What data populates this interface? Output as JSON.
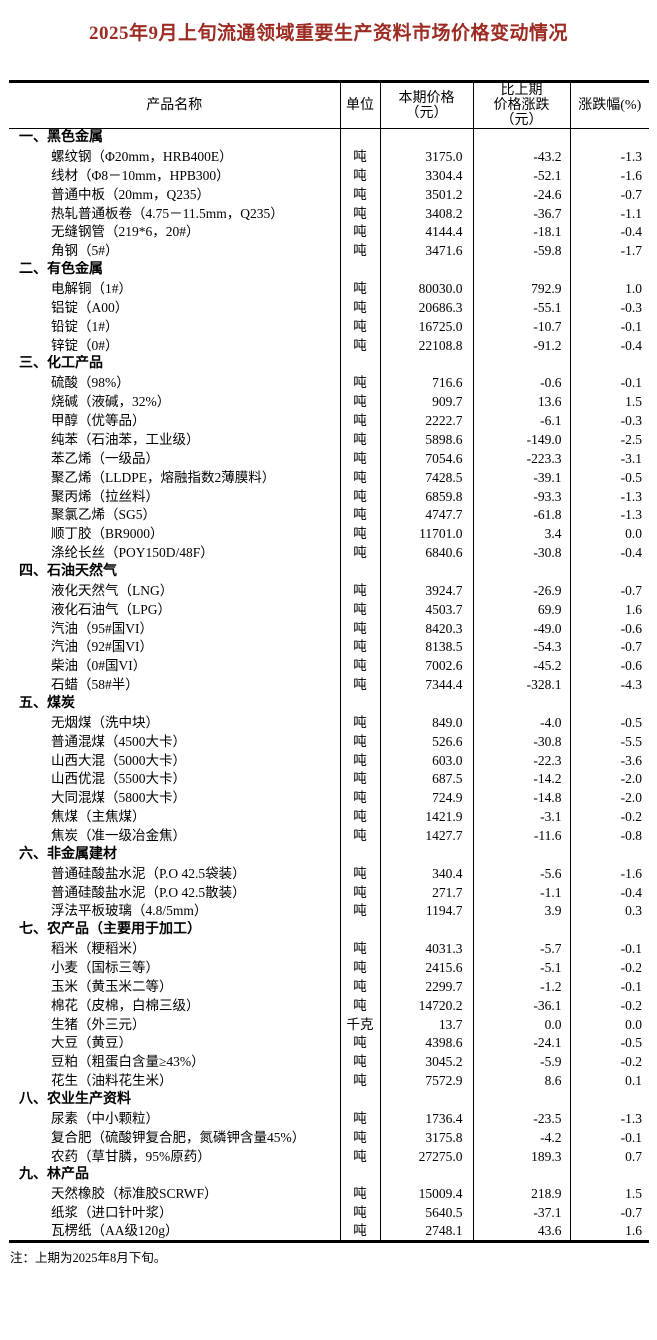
{
  "title": "2025年9月上旬流通领域重要生产资料市场价格变动情况",
  "note": "注：上期为2025年8月下旬。",
  "colors": {
    "title_red": "#9c2b22",
    "text": "#000000",
    "border": "#000000"
  },
  "table": {
    "headers": {
      "product": "产品名称",
      "unit": "单位",
      "price": "本期价格\n（元）",
      "change": "比上期\n价格涨跌\n（元）",
      "pct": "涨跌幅(%)"
    },
    "sections": [
      {
        "name": "一、黑色金属",
        "rows": [
          {
            "product": "螺纹钢（Φ20mm，HRB400E）",
            "unit": "吨",
            "price": "3175.0",
            "change": "-43.2",
            "pct": "-1.3"
          },
          {
            "product": "线材（Φ8－10mm，HPB300）",
            "unit": "吨",
            "price": "3304.4",
            "change": "-52.1",
            "pct": "-1.6"
          },
          {
            "product": "普通中板（20mm，Q235）",
            "unit": "吨",
            "price": "3501.2",
            "change": "-24.6",
            "pct": "-0.7"
          },
          {
            "product": "热轧普通板卷（4.75－11.5mm，Q235）",
            "unit": "吨",
            "price": "3408.2",
            "change": "-36.7",
            "pct": "-1.1"
          },
          {
            "product": "无缝钢管（219*6，20#）",
            "unit": "吨",
            "price": "4144.4",
            "change": "-18.1",
            "pct": "-0.4"
          },
          {
            "product": "角钢（5#）",
            "unit": "吨",
            "price": "3471.6",
            "change": "-59.8",
            "pct": "-1.7"
          }
        ]
      },
      {
        "name": "二、有色金属",
        "rows": [
          {
            "product": "电解铜（1#）",
            "unit": "吨",
            "price": "80030.0",
            "change": "792.9",
            "pct": "1.0"
          },
          {
            "product": "铝锭（A00）",
            "unit": "吨",
            "price": "20686.3",
            "change": "-55.1",
            "pct": "-0.3"
          },
          {
            "product": "铅锭（1#）",
            "unit": "吨",
            "price": "16725.0",
            "change": "-10.7",
            "pct": "-0.1"
          },
          {
            "product": "锌锭（0#）",
            "unit": "吨",
            "price": "22108.8",
            "change": "-91.2",
            "pct": "-0.4"
          }
        ]
      },
      {
        "name": "三、化工产品",
        "rows": [
          {
            "product": "硫酸（98%）",
            "unit": "吨",
            "price": "716.6",
            "change": "-0.6",
            "pct": "-0.1"
          },
          {
            "product": "烧碱（液碱，32%）",
            "unit": "吨",
            "price": "909.7",
            "change": "13.6",
            "pct": "1.5"
          },
          {
            "product": "甲醇（优等品）",
            "unit": "吨",
            "price": "2222.7",
            "change": "-6.1",
            "pct": "-0.3"
          },
          {
            "product": "纯苯（石油苯，工业级）",
            "unit": "吨",
            "price": "5898.6",
            "change": "-149.0",
            "pct": "-2.5"
          },
          {
            "product": "苯乙烯（一级品）",
            "unit": "吨",
            "price": "7054.6",
            "change": "-223.3",
            "pct": "-3.1"
          },
          {
            "product": "聚乙烯（LLDPE，熔融指数2薄膜料）",
            "unit": "吨",
            "price": "7428.5",
            "change": "-39.1",
            "pct": "-0.5"
          },
          {
            "product": "聚丙烯（拉丝料）",
            "unit": "吨",
            "price": "6859.8",
            "change": "-93.3",
            "pct": "-1.3"
          },
          {
            "product": "聚氯乙烯（SG5）",
            "unit": "吨",
            "price": "4747.7",
            "change": "-61.8",
            "pct": "-1.3"
          },
          {
            "product": "顺丁胶（BR9000）",
            "unit": "吨",
            "price": "11701.0",
            "change": "3.4",
            "pct": "0.0"
          },
          {
            "product": "涤纶长丝（POY150D/48F）",
            "unit": "吨",
            "price": "6840.6",
            "change": "-30.8",
            "pct": "-0.4"
          }
        ]
      },
      {
        "name": "四、石油天然气",
        "rows": [
          {
            "product": "液化天然气（LNG）",
            "unit": "吨",
            "price": "3924.7",
            "change": "-26.9",
            "pct": "-0.7"
          },
          {
            "product": "液化石油气（LPG）",
            "unit": "吨",
            "price": "4503.7",
            "change": "69.9",
            "pct": "1.6"
          },
          {
            "product": "汽油（95#国VI）",
            "unit": "吨",
            "price": "8420.3",
            "change": "-49.0",
            "pct": "-0.6"
          },
          {
            "product": "汽油（92#国VI）",
            "unit": "吨",
            "price": "8138.5",
            "change": "-54.3",
            "pct": "-0.7"
          },
          {
            "product": "柴油（0#国VI）",
            "unit": "吨",
            "price": "7002.6",
            "change": "-45.2",
            "pct": "-0.6"
          },
          {
            "product": "石蜡（58#半）",
            "unit": "吨",
            "price": "7344.4",
            "change": "-328.1",
            "pct": "-4.3"
          }
        ]
      },
      {
        "name": "五、煤炭",
        "rows": [
          {
            "product": "无烟煤（洗中块）",
            "unit": "吨",
            "price": "849.0",
            "change": "-4.0",
            "pct": "-0.5"
          },
          {
            "product": "普通混煤（4500大卡）",
            "unit": "吨",
            "price": "526.6",
            "change": "-30.8",
            "pct": "-5.5"
          },
          {
            "product": "山西大混（5000大卡）",
            "unit": "吨",
            "price": "603.0",
            "change": "-22.3",
            "pct": "-3.6"
          },
          {
            "product": "山西优混（5500大卡）",
            "unit": "吨",
            "price": "687.5",
            "change": "-14.2",
            "pct": "-2.0"
          },
          {
            "product": "大同混煤（5800大卡）",
            "unit": "吨",
            "price": "724.9",
            "change": "-14.8",
            "pct": "-2.0"
          },
          {
            "product": "焦煤（主焦煤）",
            "unit": "吨",
            "price": "1421.9",
            "change": "-3.1",
            "pct": "-0.2"
          },
          {
            "product": "焦炭（准一级冶金焦）",
            "unit": "吨",
            "price": "1427.7",
            "change": "-11.6",
            "pct": "-0.8"
          }
        ]
      },
      {
        "name": "六、非金属建材",
        "rows": [
          {
            "product": "普通硅酸盐水泥（P.O 42.5袋装）",
            "unit": "吨",
            "price": "340.4",
            "change": "-5.6",
            "pct": "-1.6"
          },
          {
            "product": "普通硅酸盐水泥（P.O 42.5散装）",
            "unit": "吨",
            "price": "271.7",
            "change": "-1.1",
            "pct": "-0.4"
          },
          {
            "product": "浮法平板玻璃（4.8/5mm）",
            "unit": "吨",
            "price": "1194.7",
            "change": "3.9",
            "pct": "0.3"
          }
        ]
      },
      {
        "name": "七、农产品（主要用于加工）",
        "rows": [
          {
            "product": "稻米（粳稻米）",
            "unit": "吨",
            "price": "4031.3",
            "change": "-5.7",
            "pct": "-0.1"
          },
          {
            "product": "小麦（国标三等）",
            "unit": "吨",
            "price": "2415.6",
            "change": "-5.1",
            "pct": "-0.2"
          },
          {
            "product": "玉米（黄玉米二等）",
            "unit": "吨",
            "price": "2299.7",
            "change": "-1.2",
            "pct": "-0.1"
          },
          {
            "product": "棉花（皮棉，白棉三级）",
            "unit": "吨",
            "price": "14720.2",
            "change": "-36.1",
            "pct": "-0.2"
          },
          {
            "product": "生猪（外三元）",
            "unit": "千克",
            "price": "13.7",
            "change": "0.0",
            "pct": "0.0"
          },
          {
            "product": "大豆（黄豆）",
            "unit": "吨",
            "price": "4398.6",
            "change": "-24.1",
            "pct": "-0.5"
          },
          {
            "product": "豆粕（粗蛋白含量≥43%）",
            "unit": "吨",
            "price": "3045.2",
            "change": "-5.9",
            "pct": "-0.2"
          },
          {
            "product": "花生（油料花生米）",
            "unit": "吨",
            "price": "7572.9",
            "change": "8.6",
            "pct": "0.1"
          }
        ]
      },
      {
        "name": "八、农业生产资料",
        "rows": [
          {
            "product": "尿素（中小颗粒）",
            "unit": "吨",
            "price": "1736.4",
            "change": "-23.5",
            "pct": "-1.3"
          },
          {
            "product": "复合肥（硫酸钾复合肥，氮磷钾含量45%）",
            "unit": "吨",
            "price": "3175.8",
            "change": "-4.2",
            "pct": "-0.1"
          },
          {
            "product": "农药（草甘膦，95%原药）",
            "unit": "吨",
            "price": "27275.0",
            "change": "189.3",
            "pct": "0.7"
          }
        ]
      },
      {
        "name": "九、林产品",
        "rows": [
          {
            "product": "天然橡胶（标准胶SCRWF）",
            "unit": "吨",
            "price": "15009.4",
            "change": "218.9",
            "pct": "1.5"
          },
          {
            "product": "纸浆（进口针叶浆）",
            "unit": "吨",
            "price": "5640.5",
            "change": "-37.1",
            "pct": "-0.7"
          },
          {
            "product": "瓦楞纸（AA级120g）",
            "unit": "吨",
            "price": "2748.1",
            "change": "43.6",
            "pct": "1.6"
          }
        ]
      }
    ]
  }
}
